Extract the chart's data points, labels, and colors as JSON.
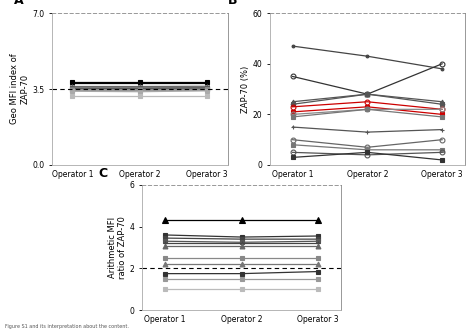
{
  "panel_A": {
    "title": "A",
    "ylabel": "Geo MFI index of\nZAP-70",
    "ylim": [
      0,
      7
    ],
    "yticks": [
      0,
      3.5,
      7
    ],
    "hline": 3.5,
    "series": [
      {
        "y": [
          3.85,
          3.85,
          3.85
        ],
        "marker": "s",
        "color": "#000000",
        "ms": 3.5
      },
      {
        "y": [
          3.78,
          3.78,
          3.78
        ],
        "marker": "x",
        "color": "#000000",
        "ms": 3.5
      },
      {
        "y": [
          3.62,
          3.62,
          3.63
        ],
        "marker": "+",
        "color": "#666666",
        "ms": 3.5
      },
      {
        "y": [
          3.56,
          3.56,
          3.57
        ],
        "marker": "s",
        "color": "#666666",
        "ms": 3.0
      },
      {
        "y": [
          3.54,
          3.54,
          3.54
        ],
        "marker": "s",
        "color": "#555555",
        "ms": 3.0
      },
      {
        "y": [
          3.52,
          3.52,
          3.52
        ],
        "marker": "s",
        "color": "#777777",
        "ms": 3.0
      },
      {
        "y": [
          3.48,
          3.47,
          3.5
        ],
        "marker": "s",
        "color": "#888888",
        "ms": 3.0
      },
      {
        "y": [
          3.44,
          3.43,
          3.44
        ],
        "marker": "x",
        "color": "#999999",
        "ms": 3.5
      },
      {
        "y": [
          3.4,
          3.38,
          3.42
        ],
        "marker": "s",
        "color": "#aaaaaa",
        "ms": 3.0
      },
      {
        "y": [
          3.2,
          3.2,
          3.2
        ],
        "marker": "s",
        "color": "#bbbbbb",
        "ms": 3.0
      }
    ]
  },
  "panel_B": {
    "title": "B",
    "ylabel": "ZAP-70 (%)",
    "ylim": [
      0,
      60
    ],
    "yticks": [
      0,
      20,
      40,
      60
    ],
    "series": [
      {
        "y": [
          47,
          43,
          38
        ],
        "marker": ".",
        "color": "#444444",
        "ls": "-",
        "ms": 4,
        "fill": true
      },
      {
        "y": [
          35,
          28,
          40
        ],
        "marker": "o",
        "color": "#333333",
        "ls": "-",
        "ms": 3.5,
        "fill": false
      },
      {
        "y": [
          25,
          28,
          25
        ],
        "marker": "^",
        "color": "#555555",
        "ls": "-",
        "ms": 3.5,
        "fill": true
      },
      {
        "y": [
          24,
          28,
          24
        ],
        "marker": "s",
        "color": "#555555",
        "ls": "-",
        "ms": 3.5,
        "fill": true
      },
      {
        "y": [
          23,
          25,
          22
        ],
        "marker": "o",
        "color": "#cc0000",
        "ls": "-",
        "ms": 3.5,
        "fill": false
      },
      {
        "y": [
          21,
          23,
          20
        ],
        "marker": "s",
        "color": "#cc0000",
        "ls": "-",
        "ms": 3.5,
        "fill": true
      },
      {
        "y": [
          20,
          22,
          22
        ],
        "marker": "o",
        "color": "#888888",
        "ls": "-",
        "ms": 3.5,
        "fill": false
      },
      {
        "y": [
          19,
          22,
          19
        ],
        "marker": "s",
        "color": "#777777",
        "ls": "-",
        "ms": 3.5,
        "fill": true
      },
      {
        "y": [
          15,
          13,
          14
        ],
        "marker": "+",
        "color": "#555555",
        "ls": "-",
        "ms": 3.5,
        "fill": true
      },
      {
        "y": [
          10,
          7,
          10
        ],
        "marker": "o",
        "color": "#666666",
        "ls": "-",
        "ms": 3.5,
        "fill": false
      },
      {
        "y": [
          8,
          6,
          6
        ],
        "marker": "s",
        "color": "#777777",
        "ls": "-",
        "ms": 3.5,
        "fill": true
      },
      {
        "y": [
          5,
          4,
          5
        ],
        "marker": "o",
        "color": "#555555",
        "ls": "-",
        "ms": 3.5,
        "fill": false
      },
      {
        "y": [
          3,
          5,
          2
        ],
        "marker": "s",
        "color": "#333333",
        "ls": "-",
        "ms": 3.5,
        "fill": true
      }
    ]
  },
  "panel_C": {
    "title": "C",
    "ylabel": "Arithmetic MFI\nratio of ZAP-70",
    "ylim": [
      0,
      6
    ],
    "yticks": [
      0,
      2,
      4,
      6
    ],
    "hline": 2.0,
    "series": [
      {
        "y": [
          4.3,
          4.3,
          4.3
        ],
        "marker": "^",
        "color": "#000000",
        "ms": 4,
        "fill": true
      },
      {
        "y": [
          3.6,
          3.5,
          3.55
        ],
        "marker": "s",
        "color": "#333333",
        "ms": 3.5,
        "fill": true
      },
      {
        "y": [
          3.45,
          3.4,
          3.4
        ],
        "marker": "s",
        "color": "#444444",
        "ms": 3.5,
        "fill": true
      },
      {
        "y": [
          3.3,
          3.25,
          3.3
        ],
        "marker": "s",
        "color": "#555555",
        "ms": 3.5,
        "fill": true
      },
      {
        "y": [
          3.2,
          3.2,
          3.2
        ],
        "marker": "+",
        "color": "#444444",
        "ms": 3.5,
        "fill": true
      },
      {
        "y": [
          3.05,
          3.05,
          3.05
        ],
        "marker": "^",
        "color": "#666666",
        "ms": 3.5,
        "fill": true
      },
      {
        "y": [
          2.5,
          2.5,
          2.5
        ],
        "marker": "s",
        "color": "#888888",
        "ms": 3.5,
        "fill": true
      },
      {
        "y": [
          2.2,
          2.2,
          2.2
        ],
        "marker": "^",
        "color": "#777777",
        "ms": 3.5,
        "fill": true
      },
      {
        "y": [
          1.75,
          1.75,
          1.85
        ],
        "marker": "s",
        "color": "#333333",
        "ms": 3.5,
        "fill": true
      },
      {
        "y": [
          1.5,
          1.5,
          1.5
        ],
        "marker": "s",
        "color": "#999999",
        "ms": 3.5,
        "fill": true
      },
      {
        "y": [
          1.0,
          1.0,
          1.0
        ],
        "marker": "s",
        "color": "#bbbbbb",
        "ms": 3.5,
        "fill": true
      }
    ]
  },
  "operators": [
    "Operator 1",
    "Operator 2",
    "Operator 3"
  ],
  "x": [
    0,
    1,
    2
  ],
  "label_fontsize": 6,
  "tick_fontsize": 5.5,
  "lw": 0.9
}
